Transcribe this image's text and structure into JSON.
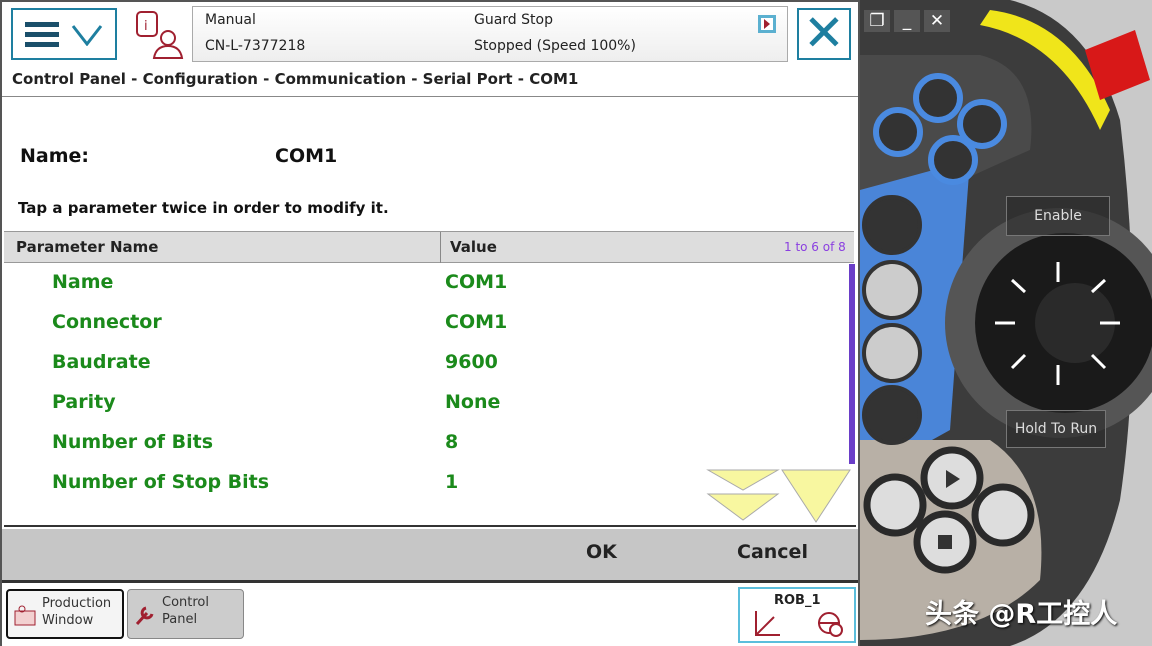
{
  "header": {
    "mode": "Manual",
    "controller": "CN-L-7377218",
    "guard": "Guard Stop",
    "state": "Stopped (Speed 100%)"
  },
  "breadcrumb": "Control Panel - Configuration - Communication - Serial Port - COM1",
  "instance": {
    "label": "Name:",
    "value": "COM1"
  },
  "hint": "Tap a parameter twice in order to modify it.",
  "grid": {
    "col1": "Parameter Name",
    "col2": "Value",
    "count": "1 to 6 of 8",
    "rows": [
      {
        "k": "Name",
        "v": "COM1"
      },
      {
        "k": "Connector",
        "v": "COM1"
      },
      {
        "k": "Baudrate",
        "v": "9600"
      },
      {
        "k": "Parity",
        "v": "None"
      },
      {
        "k": "Number of Bits",
        "v": "8"
      },
      {
        "k": "Number of Stop Bits",
        "v": "1"
      }
    ]
  },
  "buttons": {
    "ok": "OK",
    "cancel": "Cancel"
  },
  "taskbar": {
    "production": "Production Window",
    "control": "Control Panel",
    "rob": "ROB_1"
  },
  "pendant": {
    "enable": "Enable",
    "hold": "Hold To Run"
  },
  "window_buttons": {
    "restore": "❐",
    "minimize": "_",
    "close": "✕"
  },
  "watermark": "头条 @R工控人",
  "colors": {
    "accent": "#1e7fa0",
    "value_green": "#1b8a1b",
    "count_purple": "#8a3ee0"
  }
}
